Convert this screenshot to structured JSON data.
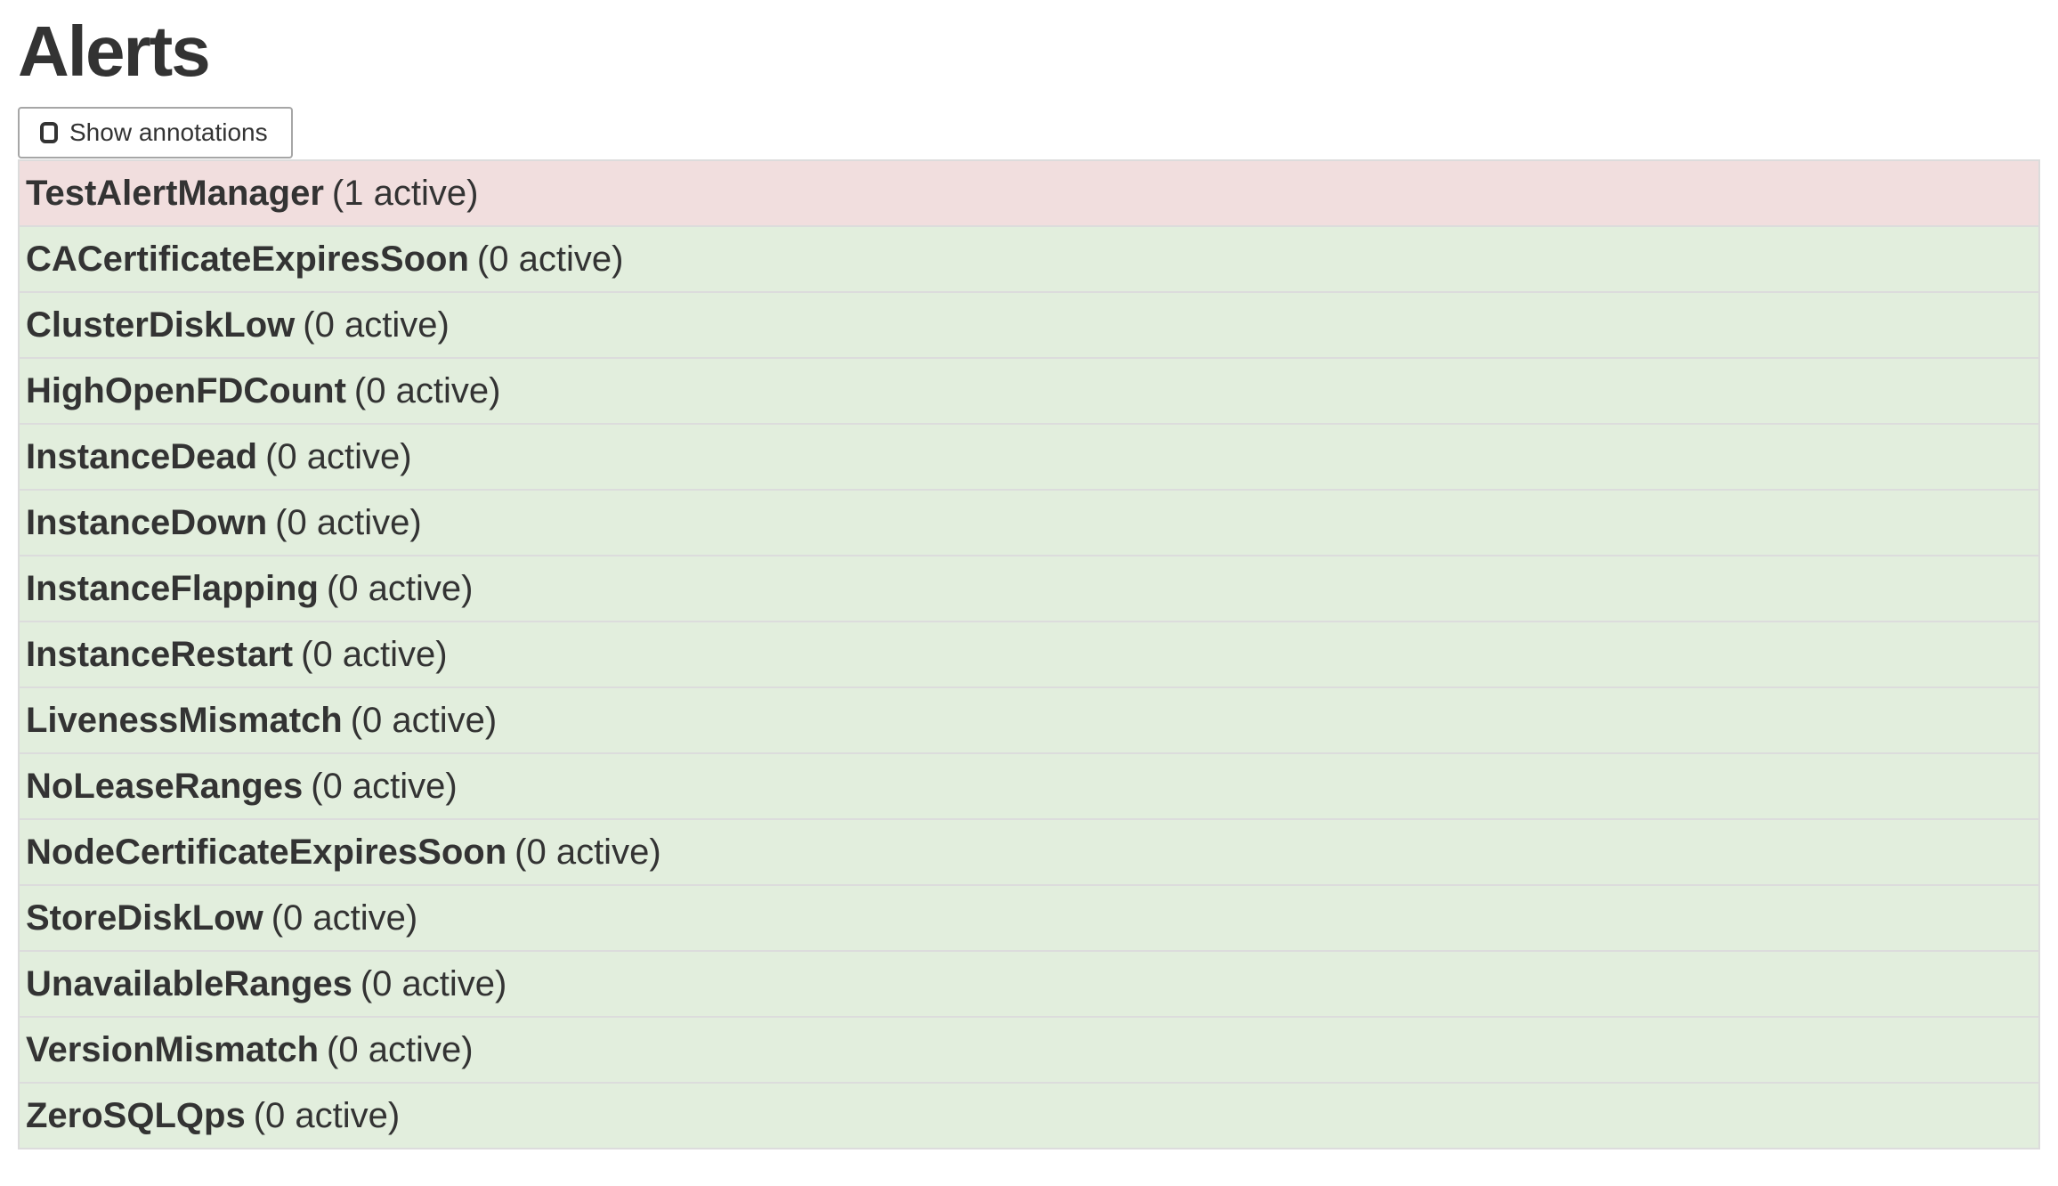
{
  "page_title": "Alerts",
  "toolbar": {
    "show_annotations_label": "Show annotations",
    "checkbox_checked": false
  },
  "alerts": [
    {
      "name": "TestAlertManager",
      "active_count": 1,
      "count_label": "(1 active)",
      "state": "firing"
    },
    {
      "name": "CACertificateExpiresSoon",
      "active_count": 0,
      "count_label": "(0 active)",
      "state": "inactive"
    },
    {
      "name": "ClusterDiskLow",
      "active_count": 0,
      "count_label": "(0 active)",
      "state": "inactive"
    },
    {
      "name": "HighOpenFDCount",
      "active_count": 0,
      "count_label": "(0 active)",
      "state": "inactive"
    },
    {
      "name": "InstanceDead",
      "active_count": 0,
      "count_label": "(0 active)",
      "state": "inactive"
    },
    {
      "name": "InstanceDown",
      "active_count": 0,
      "count_label": "(0 active)",
      "state": "inactive"
    },
    {
      "name": "InstanceFlapping",
      "active_count": 0,
      "count_label": "(0 active)",
      "state": "inactive"
    },
    {
      "name": "InstanceRestart",
      "active_count": 0,
      "count_label": "(0 active)",
      "state": "inactive"
    },
    {
      "name": "LivenessMismatch",
      "active_count": 0,
      "count_label": "(0 active)",
      "state": "inactive"
    },
    {
      "name": "NoLeaseRanges",
      "active_count": 0,
      "count_label": "(0 active)",
      "state": "inactive"
    },
    {
      "name": "NodeCertificateExpiresSoon",
      "active_count": 0,
      "count_label": "(0 active)",
      "state": "inactive"
    },
    {
      "name": "StoreDiskLow",
      "active_count": 0,
      "count_label": "(0 active)",
      "state": "inactive"
    },
    {
      "name": "UnavailableRanges",
      "active_count": 0,
      "count_label": "(0 active)",
      "state": "inactive"
    },
    {
      "name": "VersionMismatch",
      "active_count": 0,
      "count_label": "(0 active)",
      "state": "inactive"
    },
    {
      "name": "ZeroSQLQps",
      "active_count": 0,
      "count_label": "(0 active)",
      "state": "inactive"
    }
  ],
  "colors": {
    "firing_bg": "#f1dede",
    "inactive_bg": "#e2eedd",
    "table_border": "#dcdcdc",
    "button_border": "#a6a6a6",
    "text": "#333333"
  }
}
